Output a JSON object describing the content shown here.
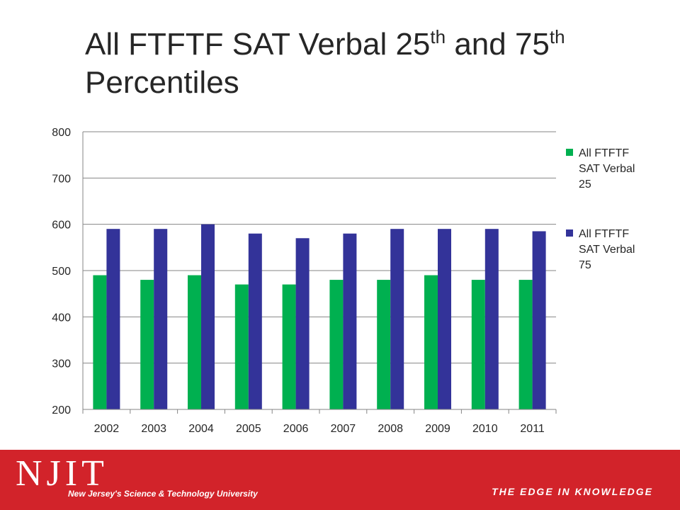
{
  "slide": {
    "title_part1": "All FTFTF SAT Verbal 25",
    "title_sup1": "th",
    "title_part2": " and 75",
    "title_sup2": "th",
    "title_line2": "Percentiles"
  },
  "chart_data": {
    "type": "bar",
    "categories": [
      "2002",
      "2003",
      "2004",
      "2005",
      "2006",
      "2007",
      "2008",
      "2009",
      "2010",
      "2011"
    ],
    "series": [
      {
        "name": "All FTFTF SAT Verbal 25",
        "values": [
          490,
          480,
          490,
          470,
          470,
          480,
          480,
          490,
          480,
          480
        ],
        "color": "#00b050"
      },
      {
        "name": "All FTFTF SAT Verbal 75",
        "values": [
          590,
          590,
          600,
          580,
          570,
          580,
          590,
          590,
          590,
          585
        ],
        "color": "#333399"
      }
    ],
    "ylim": [
      200,
      800
    ],
    "yticks": [
      200,
      300,
      400,
      500,
      600,
      700,
      800
    ],
    "grid": true,
    "legend_position": "right",
    "legend_lines": [
      [
        "All FTFTF",
        "SAT Verbal",
        "25"
      ],
      [
        "All FTFTF",
        "SAT Verbal",
        "75"
      ]
    ]
  },
  "footer": {
    "logo_text": "NJIT",
    "logo_subtitle": "New Jersey's Science & Technology University",
    "tagline": "THE EDGE IN KNOWLEDGE",
    "background_color": "#d2232a"
  }
}
